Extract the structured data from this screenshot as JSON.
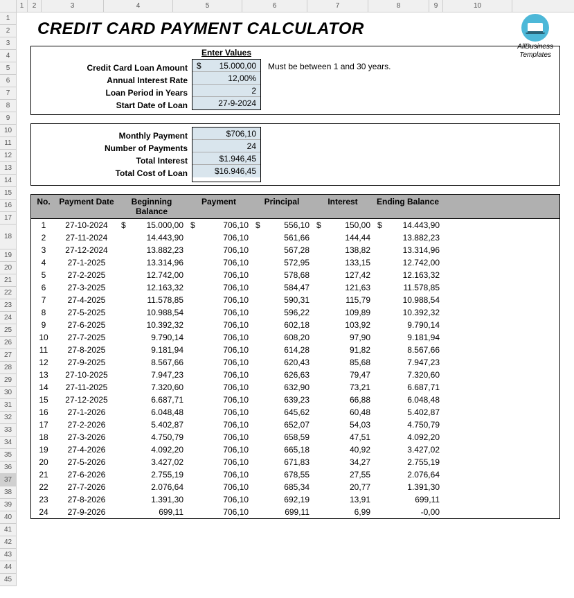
{
  "cols": [
    {
      "label": "1",
      "w": 24
    },
    {
      "label": "1",
      "w": 16
    },
    {
      "label": "2",
      "w": 20
    },
    {
      "label": "3",
      "w": 90
    },
    {
      "label": "4",
      "w": 100
    },
    {
      "label": "5",
      "w": 100
    },
    {
      "label": "6",
      "w": 94
    },
    {
      "label": "7",
      "w": 88
    },
    {
      "label": "8",
      "w": 88
    },
    {
      "label": "9",
      "w": 20
    },
    {
      "label": "10",
      "w": 100
    }
  ],
  "rows": [
    "1",
    "2",
    "3",
    "4",
    "5",
    "6",
    "7",
    "8",
    "9",
    "10",
    "11",
    "12",
    "13",
    "14",
    "15",
    "16",
    "17",
    "18",
    "19",
    "20",
    "21",
    "22",
    "23",
    "24",
    "25",
    "26",
    "27",
    "28",
    "29",
    "30",
    "31",
    "32",
    "33",
    "34",
    "35",
    "36",
    "37",
    "38",
    "39",
    "40",
    "41",
    "42",
    "43",
    "44",
    "45"
  ],
  "title": "CREDIT CARD PAYMENT CALCULATOR",
  "logo": {
    "line1": "AllBusiness",
    "line2": "Templates"
  },
  "inputs": {
    "header": "Enter Values",
    "labels": {
      "loan_amount": "Credit Card Loan Amount",
      "rate": "Annual Interest Rate",
      "period": "Loan Period in Years",
      "start": "Start Date of Loan"
    },
    "values": {
      "loan_amount_sym": "$",
      "loan_amount": "15.000,00",
      "rate": "12,00%",
      "period": "2",
      "start": "27-9-2024"
    },
    "note": "Must be between 1 and 30 years."
  },
  "outputs": {
    "labels": {
      "monthly": "Monthly Payment",
      "num": "Number of Payments",
      "interest": "Total Interest",
      "total": "Total Cost of Loan"
    },
    "values": {
      "monthly": "$706,10",
      "num": "24",
      "interest": "$1.946,45",
      "total": "$16.946,45"
    }
  },
  "schedule": {
    "headers": {
      "no": "No.",
      "date": "Payment Date",
      "beg": "Beginning Balance",
      "pay": "Payment",
      "prin": "Principal",
      "int": "Interest",
      "end": "Ending Balance"
    },
    "rows": [
      {
        "no": "1",
        "date": "27-10-2024",
        "beg": "15.000,00",
        "pay": "706,10",
        "prin": "556,10",
        "int": "150,00",
        "end": "14.443,90"
      },
      {
        "no": "2",
        "date": "27-11-2024",
        "beg": "14.443,90",
        "pay": "706,10",
        "prin": "561,66",
        "int": "144,44",
        "end": "13.882,23"
      },
      {
        "no": "3",
        "date": "27-12-2024",
        "beg": "13.882,23",
        "pay": "706,10",
        "prin": "567,28",
        "int": "138,82",
        "end": "13.314,96"
      },
      {
        "no": "4",
        "date": "27-1-2025",
        "beg": "13.314,96",
        "pay": "706,10",
        "prin": "572,95",
        "int": "133,15",
        "end": "12.742,00"
      },
      {
        "no": "5",
        "date": "27-2-2025",
        "beg": "12.742,00",
        "pay": "706,10",
        "prin": "578,68",
        "int": "127,42",
        "end": "12.163,32"
      },
      {
        "no": "6",
        "date": "27-3-2025",
        "beg": "12.163,32",
        "pay": "706,10",
        "prin": "584,47",
        "int": "121,63",
        "end": "11.578,85"
      },
      {
        "no": "7",
        "date": "27-4-2025",
        "beg": "11.578,85",
        "pay": "706,10",
        "prin": "590,31",
        "int": "115,79",
        "end": "10.988,54"
      },
      {
        "no": "8",
        "date": "27-5-2025",
        "beg": "10.988,54",
        "pay": "706,10",
        "prin": "596,22",
        "int": "109,89",
        "end": "10.392,32"
      },
      {
        "no": "9",
        "date": "27-6-2025",
        "beg": "10.392,32",
        "pay": "706,10",
        "prin": "602,18",
        "int": "103,92",
        "end": "9.790,14"
      },
      {
        "no": "10",
        "date": "27-7-2025",
        "beg": "9.790,14",
        "pay": "706,10",
        "prin": "608,20",
        "int": "97,90",
        "end": "9.181,94"
      },
      {
        "no": "11",
        "date": "27-8-2025",
        "beg": "9.181,94",
        "pay": "706,10",
        "prin": "614,28",
        "int": "91,82",
        "end": "8.567,66"
      },
      {
        "no": "12",
        "date": "27-9-2025",
        "beg": "8.567,66",
        "pay": "706,10",
        "prin": "620,43",
        "int": "85,68",
        "end": "7.947,23"
      },
      {
        "no": "13",
        "date": "27-10-2025",
        "beg": "7.947,23",
        "pay": "706,10",
        "prin": "626,63",
        "int": "79,47",
        "end": "7.320,60"
      },
      {
        "no": "14",
        "date": "27-11-2025",
        "beg": "7.320,60",
        "pay": "706,10",
        "prin": "632,90",
        "int": "73,21",
        "end": "6.687,71"
      },
      {
        "no": "15",
        "date": "27-12-2025",
        "beg": "6.687,71",
        "pay": "706,10",
        "prin": "639,23",
        "int": "66,88",
        "end": "6.048,48"
      },
      {
        "no": "16",
        "date": "27-1-2026",
        "beg": "6.048,48",
        "pay": "706,10",
        "prin": "645,62",
        "int": "60,48",
        "end": "5.402,87"
      },
      {
        "no": "17",
        "date": "27-2-2026",
        "beg": "5.402,87",
        "pay": "706,10",
        "prin": "652,07",
        "int": "54,03",
        "end": "4.750,79"
      },
      {
        "no": "18",
        "date": "27-3-2026",
        "beg": "4.750,79",
        "pay": "706,10",
        "prin": "658,59",
        "int": "47,51",
        "end": "4.092,20"
      },
      {
        "no": "19",
        "date": "27-4-2026",
        "beg": "4.092,20",
        "pay": "706,10",
        "prin": "665,18",
        "int": "40,92",
        "end": "3.427,02"
      },
      {
        "no": "20",
        "date": "27-5-2026",
        "beg": "3.427,02",
        "pay": "706,10",
        "prin": "671,83",
        "int": "34,27",
        "end": "2.755,19"
      },
      {
        "no": "21",
        "date": "27-6-2026",
        "beg": "2.755,19",
        "pay": "706,10",
        "prin": "678,55",
        "int": "27,55",
        "end": "2.076,64"
      },
      {
        "no": "22",
        "date": "27-7-2026",
        "beg": "2.076,64",
        "pay": "706,10",
        "prin": "685,34",
        "int": "20,77",
        "end": "1.391,30"
      },
      {
        "no": "23",
        "date": "27-8-2026",
        "beg": "1.391,30",
        "pay": "706,10",
        "prin": "692,19",
        "int": "13,91",
        "end": "699,11"
      },
      {
        "no": "24",
        "date": "27-9-2026",
        "beg": "699,11",
        "pay": "706,10",
        "prin": "699,11",
        "int": "6,99",
        "end": "-0,00"
      }
    ]
  },
  "selected_row": "37"
}
